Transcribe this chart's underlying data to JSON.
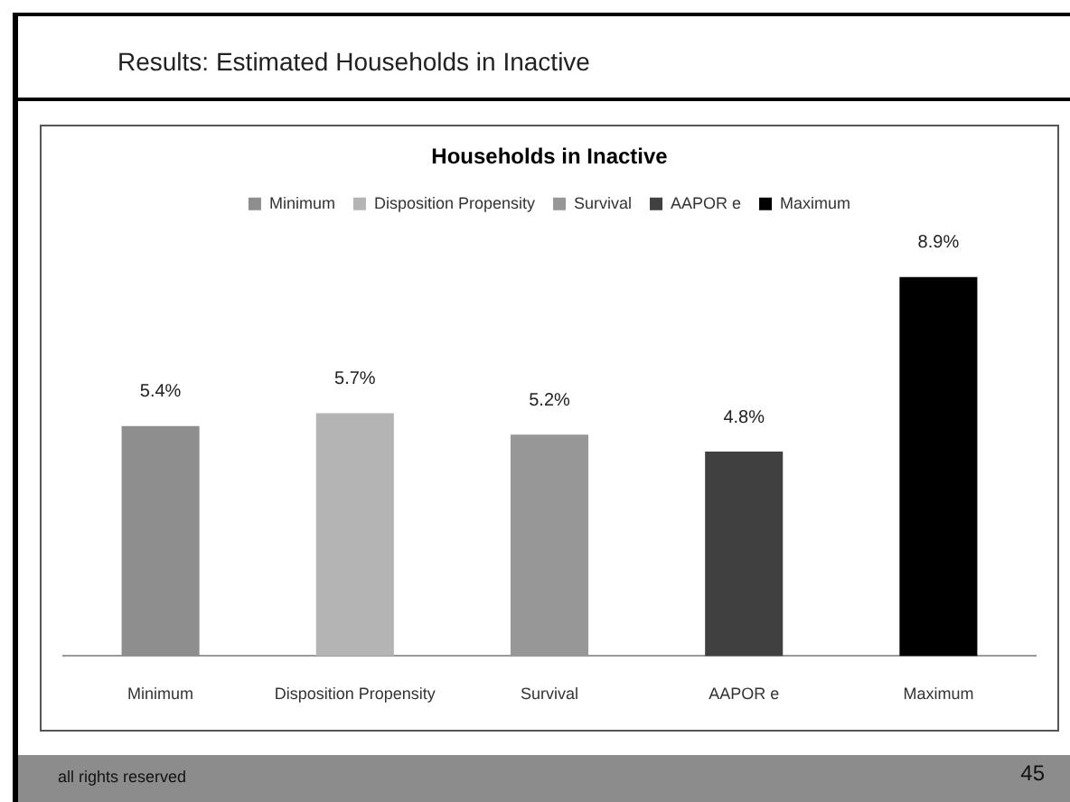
{
  "chart_data": {
    "type": "bar",
    "title": "Households in Inactive",
    "categories": [
      "Minimum",
      "Disposition Propensity",
      "Survival",
      "AAPOR e",
      "Maximum"
    ],
    "series": [
      {
        "name": "Minimum",
        "color": "#8e8e8e",
        "values": [
          5.4,
          null,
          null,
          null,
          null
        ],
        "value_labels": [
          "5.4%",
          null,
          null,
          null,
          null
        ]
      },
      {
        "name": "Disposition Propensity",
        "color": "#b4b4b4",
        "values": [
          null,
          5.7,
          null,
          null,
          null
        ],
        "value_labels": [
          null,
          "5.7%",
          null,
          null,
          null
        ]
      },
      {
        "name": "Survival",
        "color": "#979797",
        "values": [
          null,
          null,
          5.2,
          null,
          null
        ],
        "value_labels": [
          null,
          null,
          "5.2%",
          null,
          null
        ]
      },
      {
        "name": "AAPOR e",
        "color": "#404040",
        "values": [
          null,
          null,
          null,
          4.8,
          null
        ],
        "value_labels": [
          null,
          null,
          null,
          "4.8%",
          null
        ]
      },
      {
        "name": "Maximum",
        "color": "#000000",
        "values": [
          null,
          null,
          null,
          null,
          8.9
        ],
        "value_labels": [
          null,
          null,
          null,
          null,
          "8.9%"
        ]
      }
    ],
    "legend": "top",
    "annotations": [
      "Results: Estimated Households in Inactive",
      "all rights reserved",
      "45"
    ]
  }
}
